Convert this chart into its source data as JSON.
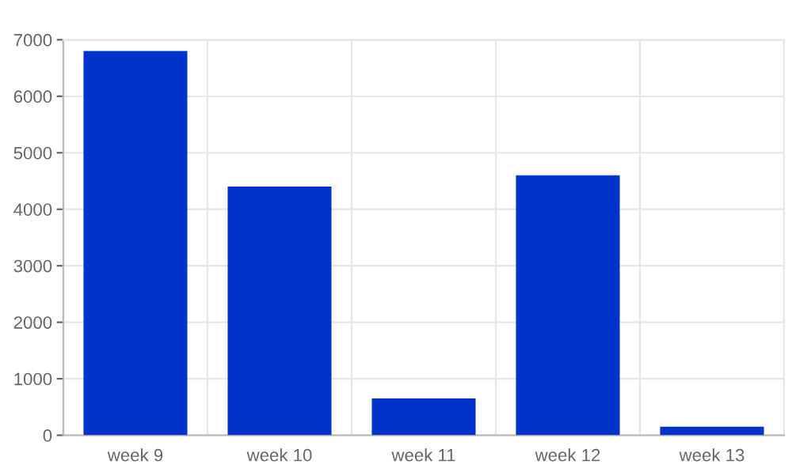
{
  "chart_data": {
    "type": "bar",
    "categories": [
      "week 9",
      "week 10",
      "week 11",
      "week 12",
      "week 13"
    ],
    "series": [
      {
        "color": "#0033cc",
        "values": [
          6800,
          4400,
          650,
          4600,
          150
        ]
      }
    ],
    "ylim": [
      0,
      7000
    ],
    "yticks": [
      0,
      1000,
      2000,
      3000,
      4000,
      5000,
      6000,
      7000
    ],
    "grid": true
  }
}
